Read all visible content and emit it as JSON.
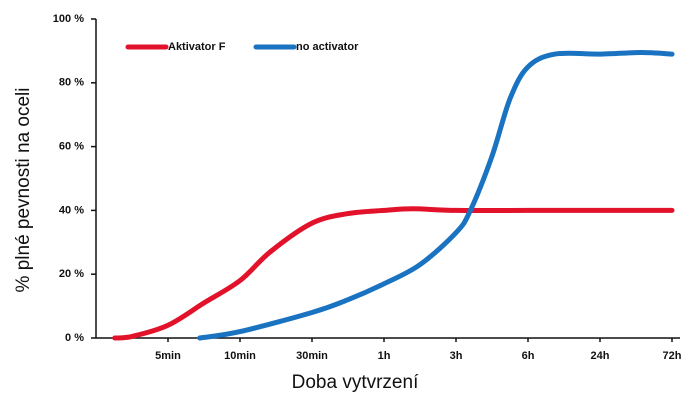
{
  "chart_data": {
    "type": "line",
    "xlabel": "Doba vytvrzení",
    "ylabel": "% plné pevnosti na oceli",
    "xlim": [
      0,
      8
    ],
    "xticks": [
      {
        "value": 1,
        "label": "5min"
      },
      {
        "value": 2,
        "label": "10min"
      },
      {
        "value": 3,
        "label": "30min"
      },
      {
        "value": 4,
        "label": "1h"
      },
      {
        "value": 5,
        "label": "3h"
      },
      {
        "value": 6,
        "label": "6h"
      },
      {
        "value": 7,
        "label": "24h"
      },
      {
        "value": 8,
        "label": "72h"
      }
    ],
    "ylim": [
      0,
      100
    ],
    "yticks": [
      {
        "value": 0,
        "label": "0 %"
      },
      {
        "value": 20,
        "label": "20 %"
      },
      {
        "value": 40,
        "label": "40 %"
      },
      {
        "value": 60,
        "label": "60 %"
      },
      {
        "value": 80,
        "label": "80 %"
      },
      {
        "value": 100,
        "label": "100 %"
      }
    ],
    "legend": "upper left",
    "series": [
      {
        "name": "Aktivator F",
        "color": "#e3122b",
        "x": [
          0.26,
          0.5,
          1,
          1.5,
          2,
          2.42,
          3,
          3.5,
          4,
          4.4,
          5,
          6,
          7,
          8
        ],
        "values": [
          0,
          0.5,
          4,
          11,
          18,
          27,
          36,
          39,
          40,
          40.5,
          40,
          40,
          40,
          40
        ]
      },
      {
        "name": "no activator",
        "color": "#1a73c0",
        "x": [
          1.44,
          2,
          3,
          3.5,
          4,
          4.5,
          5,
          5.2,
          5.5,
          5.75,
          6,
          6.375,
          7,
          7.57,
          8
        ],
        "values": [
          0,
          2,
          8,
          12,
          17,
          23,
          33,
          40,
          57,
          75,
          85,
          89,
          89,
          89.5,
          89
        ]
      }
    ]
  }
}
